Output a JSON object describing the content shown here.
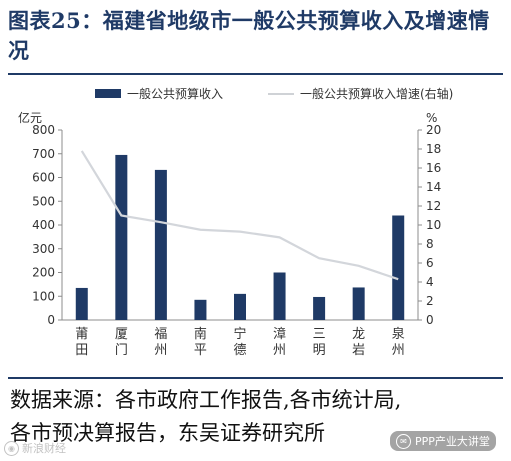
{
  "title": "图表25：福建省地级市一般公共预算收入及增速情况",
  "source_lines": [
    "数据来源：各市政府工作报告,各市统计局,",
    "各市预决算报告，东吴证券研究所"
  ],
  "watermarks": {
    "left": "新浪财经",
    "right": "PPP产业大讲堂",
    "left_icon": "weibo-icon",
    "right_icon": "wechat-icon"
  },
  "chart_data": {
    "type": "bar",
    "categories": [
      "莆田",
      "厦门",
      "福州",
      "南平",
      "宁德",
      "漳州",
      "三明",
      "龙岩",
      "泉州"
    ],
    "series": [
      {
        "name": "一般公共预算收入",
        "type": "bar",
        "axis": "left",
        "color": "#1f3a66",
        "values": [
          135,
          695,
          632,
          85,
          110,
          200,
          97,
          137,
          440
        ]
      },
      {
        "name": "一般公共预算收入增速(右轴)",
        "type": "line",
        "axis": "right",
        "color": "#d3d6db",
        "values": [
          17.8,
          11.0,
          10.3,
          9.5,
          9.3,
          8.7,
          6.5,
          5.7,
          4.3
        ]
      }
    ],
    "ylabel": "亿元",
    "ylim": [
      0,
      800
    ],
    "yticks": [
      0,
      100,
      200,
      300,
      400,
      500,
      600,
      700,
      800
    ],
    "y2label": "%",
    "y2lim": [
      0,
      20
    ],
    "y2ticks": [
      0,
      2,
      4,
      6,
      8,
      10,
      12,
      14,
      16,
      18,
      20
    ],
    "legend_position": "top",
    "grid": false
  }
}
